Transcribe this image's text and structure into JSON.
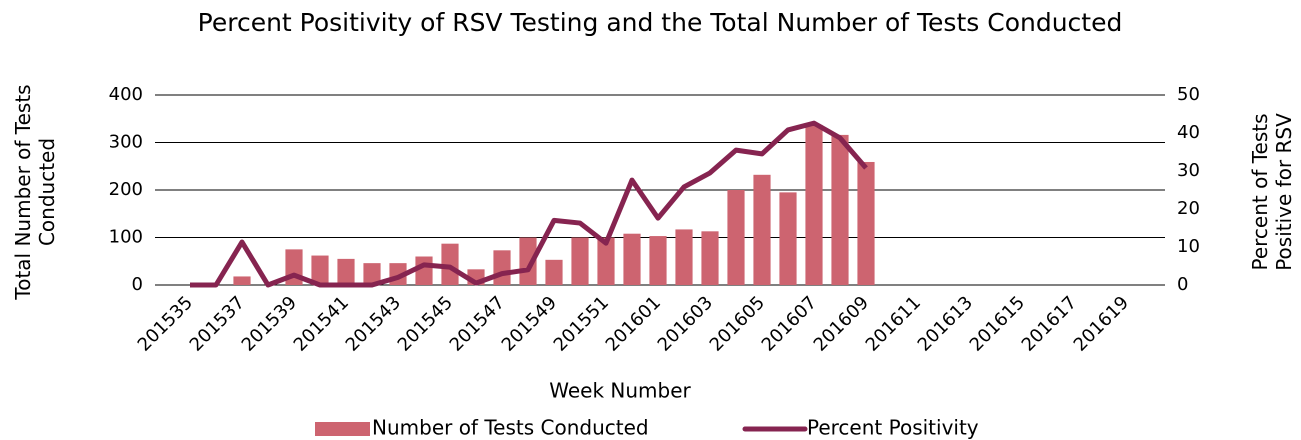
{
  "chart_data": {
    "type": "bar-line",
    "title": "Percent Positivity of RSV Testing and the Total Number of Tests Conducted",
    "x_label": "Week Number",
    "y_label": "Total Number of Tests Conducted",
    "y2_label": "Percent of Tests Positive for RSV",
    "categories": [
      "201535",
      null,
      "201537",
      null,
      "201539",
      null,
      "201541",
      null,
      "201543",
      null,
      "201545",
      null,
      "201547",
      null,
      "201549",
      null,
      "201551",
      null,
      "201601",
      null,
      "201603",
      null,
      "201605",
      null,
      "201607",
      null,
      "201609",
      null,
      "201611",
      null,
      "201613",
      null,
      "201615",
      null,
      "201617",
      null,
      "201619",
      null
    ],
    "series": [
      {
        "name": "Number of Tests Conducted",
        "kind": "bar",
        "color": "#cd6470",
        "values": [
          null,
          null,
          18,
          0,
          75,
          62,
          55,
          46,
          46,
          60,
          87,
          33,
          73,
          100,
          53,
          100,
          100,
          108,
          103,
          117,
          113,
          200,
          232,
          195,
          337,
          316,
          259,
          null,
          null,
          null,
          null,
          null,
          null,
          null,
          null,
          null,
          null,
          null
        ]
      },
      {
        "name": "Percent Positivity",
        "kind": "line",
        "axis": "y2",
        "color": "#862450",
        "values": [
          0,
          0,
          11.3,
          0,
          2.6,
          0,
          0,
          0,
          2,
          5.3,
          4.7,
          0.5,
          3,
          4,
          17,
          16.3,
          11,
          27.6,
          17.6,
          25.8,
          29.5,
          35.5,
          34.5,
          40.8,
          42.6,
          38.7,
          30.8,
          null,
          null,
          null,
          null,
          null,
          null,
          null,
          null,
          null,
          null,
          null
        ]
      }
    ],
    "ylim": [
      0,
      400
    ],
    "yticks": [
      0,
      100,
      200,
      300,
      400
    ],
    "y2lim": [
      0,
      50
    ],
    "y2ticks": [
      0,
      10,
      20,
      30,
      40,
      50
    ],
    "grid": true,
    "legend": "bottom"
  }
}
